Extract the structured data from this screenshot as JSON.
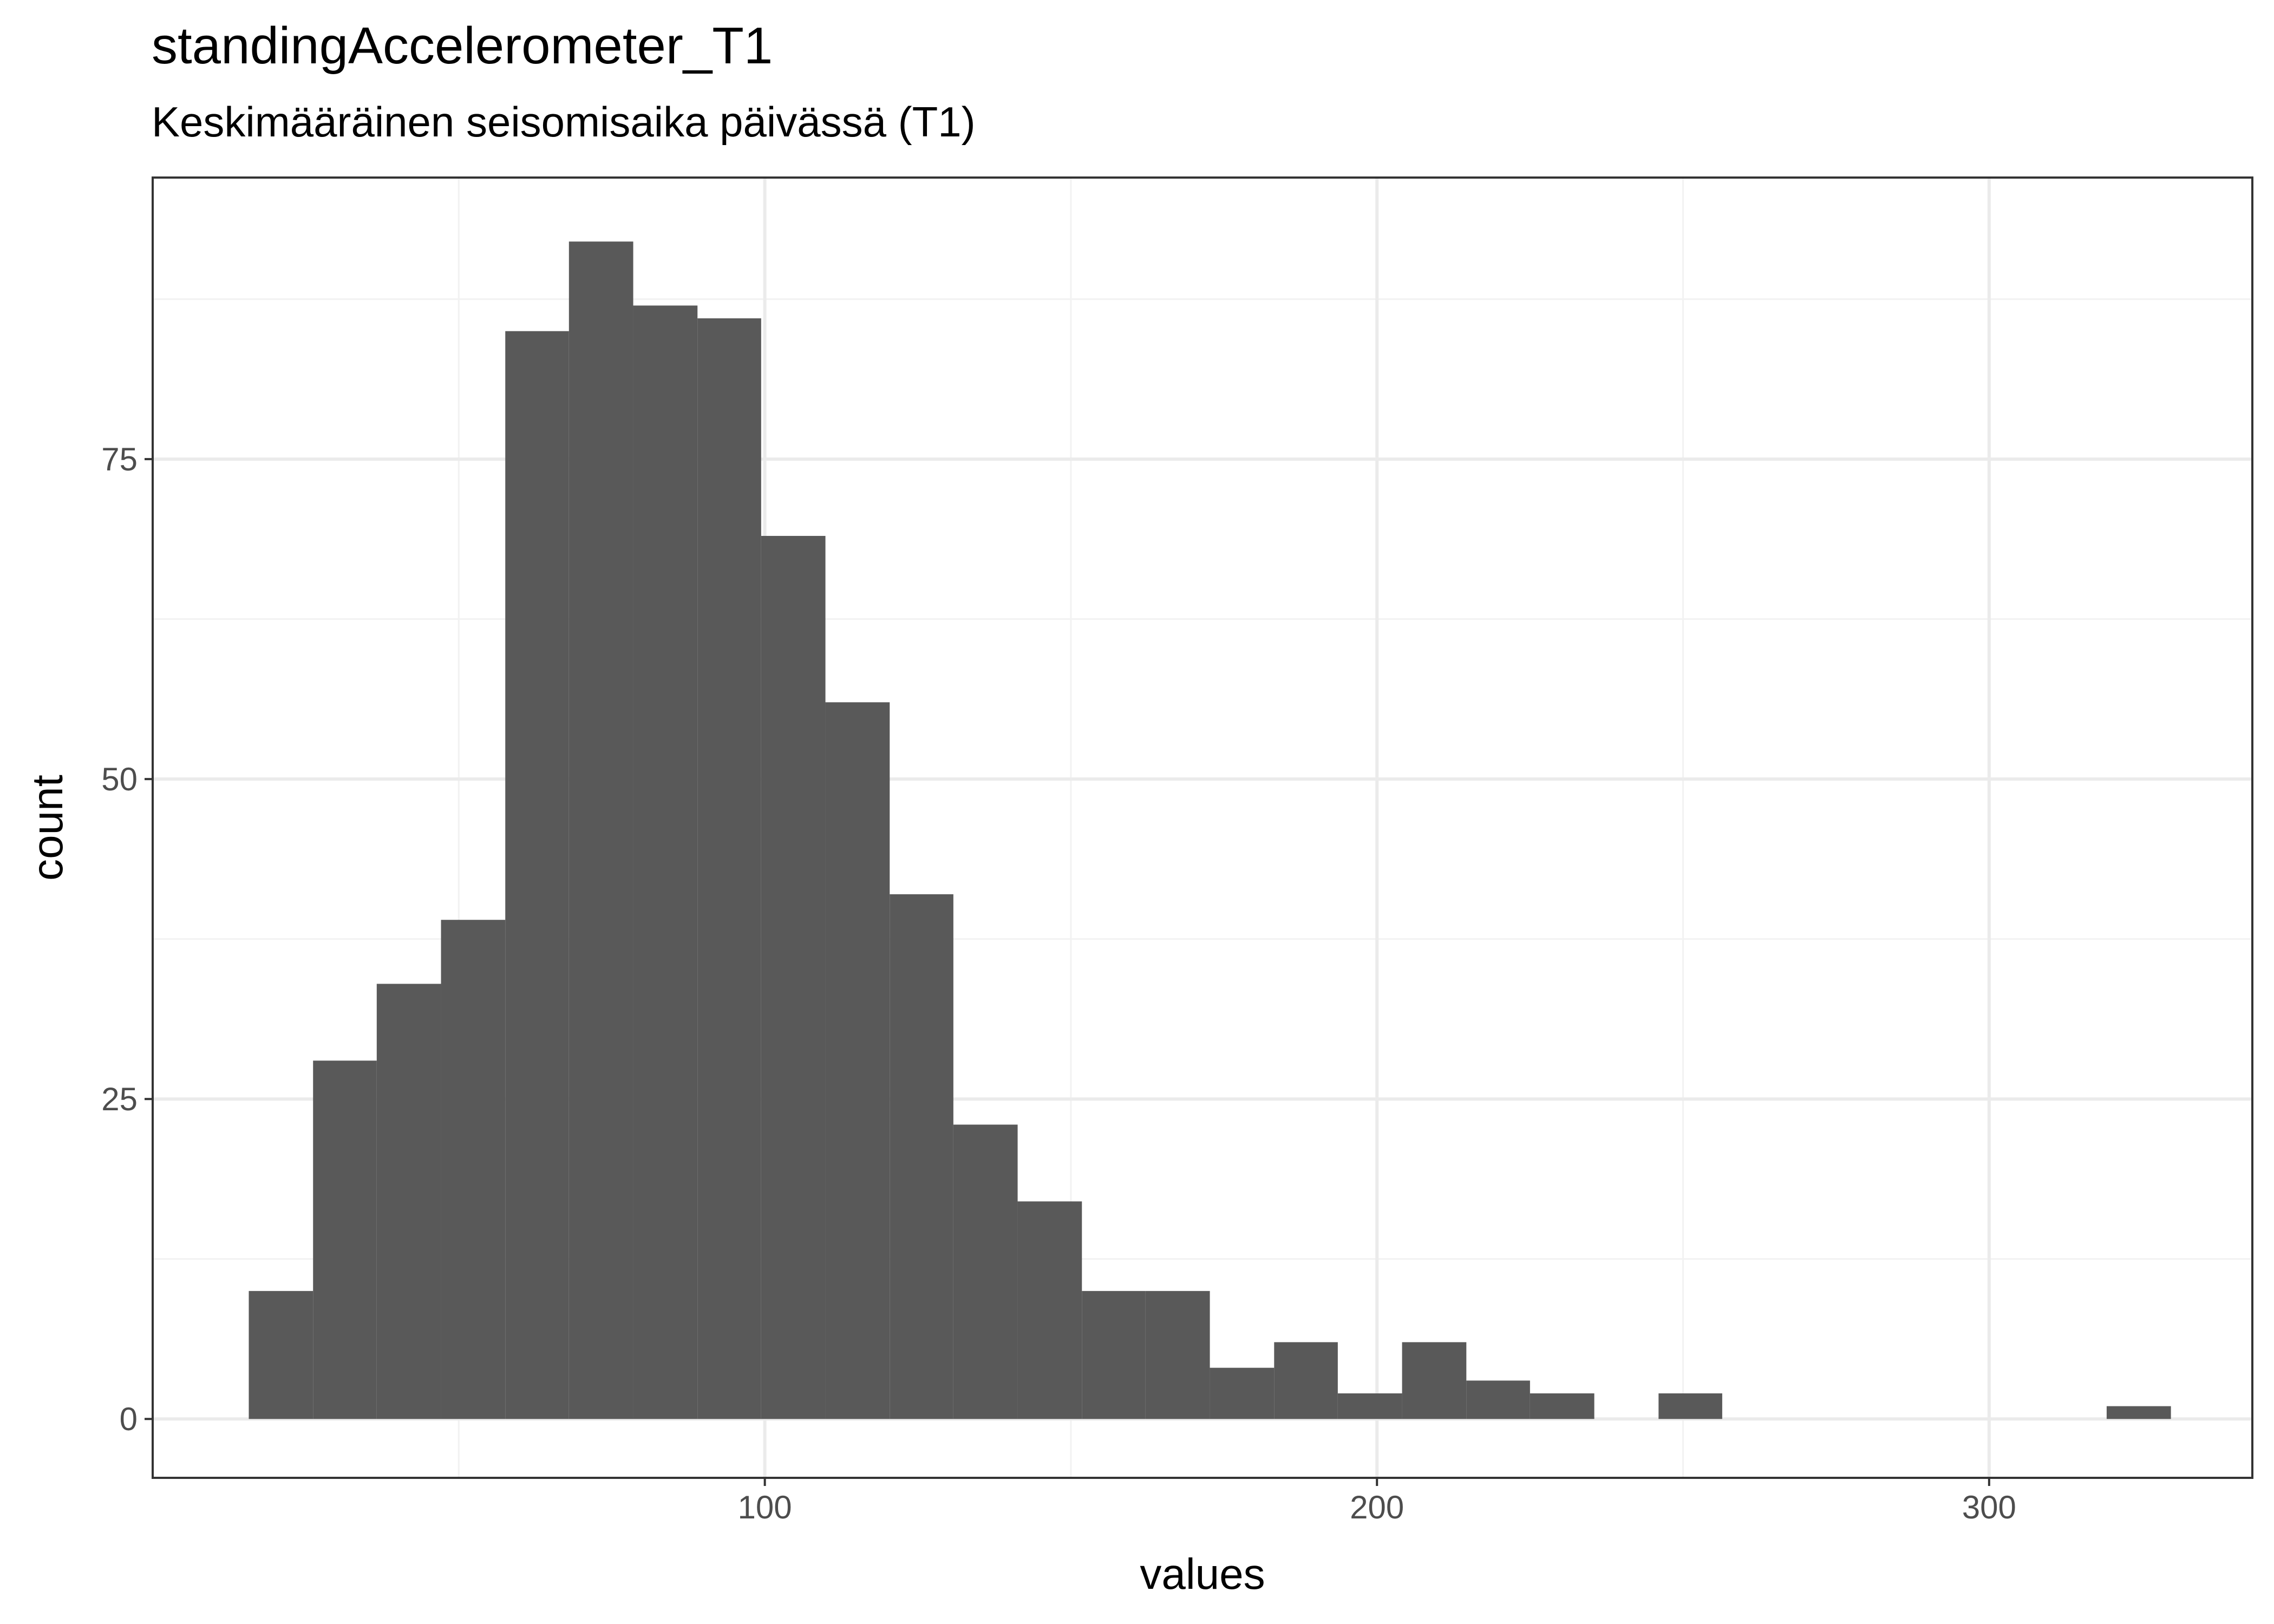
{
  "chart_data": {
    "type": "bar",
    "title": "standingAccelerometer_T1",
    "subtitle": "Keskimääräinen seisomisaika päivässä (T1)",
    "xlabel": "values",
    "ylabel": "count",
    "bin_width": 10.47,
    "bins": [
      {
        "x_start": 15.7,
        "x_end": 26.2,
        "count": 10
      },
      {
        "x_start": 26.2,
        "x_end": 36.6,
        "count": 28
      },
      {
        "x_start": 36.6,
        "x_end": 47.1,
        "count": 34
      },
      {
        "x_start": 47.1,
        "x_end": 57.6,
        "count": 39
      },
      {
        "x_start": 57.6,
        "x_end": 68.0,
        "count": 85
      },
      {
        "x_start": 68.0,
        "x_end": 78.5,
        "count": 92
      },
      {
        "x_start": 78.5,
        "x_end": 89.0,
        "count": 87
      },
      {
        "x_start": 89.0,
        "x_end": 99.4,
        "count": 86
      },
      {
        "x_start": 99.4,
        "x_end": 109.9,
        "count": 69
      },
      {
        "x_start": 109.9,
        "x_end": 120.4,
        "count": 56
      },
      {
        "x_start": 120.4,
        "x_end": 130.8,
        "count": 41
      },
      {
        "x_start": 130.8,
        "x_end": 141.3,
        "count": 23
      },
      {
        "x_start": 141.3,
        "x_end": 151.8,
        "count": 17
      },
      {
        "x_start": 151.8,
        "x_end": 162.2,
        "count": 10
      },
      {
        "x_start": 162.2,
        "x_end": 172.7,
        "count": 10
      },
      {
        "x_start": 172.7,
        "x_end": 183.2,
        "count": 4
      },
      {
        "x_start": 183.2,
        "x_end": 193.6,
        "count": 6
      },
      {
        "x_start": 193.6,
        "x_end": 204.1,
        "count": 2
      },
      {
        "x_start": 204.1,
        "x_end": 214.6,
        "count": 6
      },
      {
        "x_start": 214.6,
        "x_end": 225.0,
        "count": 3
      },
      {
        "x_start": 225.0,
        "x_end": 235.5,
        "count": 2
      },
      {
        "x_start": 235.5,
        "x_end": 246.0,
        "count": 0
      },
      {
        "x_start": 246.0,
        "x_end": 256.4,
        "count": 2
      },
      {
        "x_start": 256.4,
        "x_end": 266.9,
        "count": 0
      },
      {
        "x_start": 266.9,
        "x_end": 277.4,
        "count": 0
      },
      {
        "x_start": 277.4,
        "x_end": 287.8,
        "count": 0
      },
      {
        "x_start": 287.8,
        "x_end": 298.3,
        "count": 0
      },
      {
        "x_start": 298.3,
        "x_end": 308.8,
        "count": 0
      },
      {
        "x_start": 308.8,
        "x_end": 319.2,
        "count": 0
      },
      {
        "x_start": 319.2,
        "x_end": 329.7,
        "count": 1
      }
    ],
    "xlim": [
      0,
      343
    ],
    "ylim": [
      -4.6,
      97
    ],
    "x_ticks": [
      100,
      200,
      300
    ],
    "x_minor_ticks": [
      50,
      150,
      250
    ],
    "y_ticks": [
      0,
      25,
      50,
      75
    ],
    "y_minor_ticks": [
      12.5,
      37.5,
      62.5,
      87.5
    ],
    "grid": true,
    "legend": "none",
    "colors": {
      "bar_fill": "#595959",
      "panel_border": "#333333",
      "grid_major": "#ebebeb",
      "grid_minor": "#f2f2f2",
      "tick_label": "#4d4d4d",
      "background": "#ffffff"
    }
  }
}
